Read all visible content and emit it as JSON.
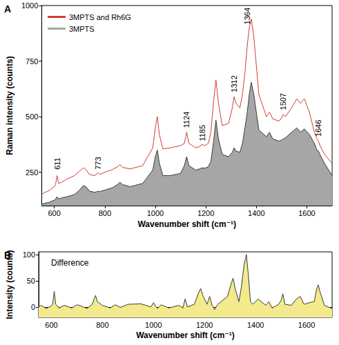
{
  "chart_data": [
    {
      "type": "line",
      "panel": "A",
      "x_label": "Wavenumber shift (cm⁻¹)",
      "y_label": "Raman intensity (counts)",
      "x": [
        550,
        560,
        580,
        600,
        605,
        611,
        617,
        630,
        650,
        680,
        700,
        715,
        725,
        740,
        760,
        767,
        773,
        780,
        800,
        830,
        850,
        860,
        870,
        900,
        950,
        990,
        1000,
        1008,
        1016,
        1030,
        1060,
        1100,
        1115,
        1124,
        1133,
        1160,
        1175,
        1185,
        1195,
        1210,
        1220,
        1230,
        1240,
        1250,
        1265,
        1290,
        1305,
        1312,
        1320,
        1335,
        1345,
        1355,
        1364,
        1372,
        1380,
        1390,
        1410,
        1440,
        1452,
        1465,
        1490,
        1500,
        1507,
        1515,
        1540,
        1560,
        1575,
        1590,
        1610,
        1630,
        1640,
        1646,
        1652,
        1670,
        1700
      ],
      "series": [
        {
          "name": "3MPTS and Rh6G",
          "color": "#d43a34",
          "type": "line",
          "values": [
            150,
            158,
            168,
            185,
            195,
            235,
            200,
            205,
            220,
            235,
            255,
            270,
            262,
            240,
            235,
            240,
            248,
            240,
            250,
            262,
            275,
            285,
            272,
            265,
            280,
            360,
            450,
            500,
            420,
            355,
            360,
            370,
            380,
            430,
            380,
            360,
            365,
            375,
            370,
            380,
            430,
            560,
            665,
            560,
            460,
            470,
            540,
            590,
            560,
            540,
            600,
            700,
            820,
            900,
            940,
            860,
            600,
            500,
            520,
            490,
            480,
            495,
            510,
            500,
            540,
            580,
            560,
            580,
            520,
            430,
            400,
            390,
            370,
            330,
            290
          ]
        },
        {
          "name": "3MPTS",
          "color": "#a6a6a6",
          "type": "area",
          "values": [
            105,
            110,
            115,
            125,
            128,
            140,
            130,
            135,
            140,
            150,
            170,
            190,
            185,
            165,
            160,
            162,
            165,
            163,
            170,
            180,
            195,
            205,
            195,
            185,
            200,
            260,
            320,
            350,
            290,
            235,
            235,
            245,
            280,
            320,
            280,
            260,
            265,
            270,
            268,
            275,
            300,
            380,
            485,
            400,
            330,
            320,
            340,
            360,
            345,
            340,
            380,
            450,
            520,
            600,
            655,
            600,
            440,
            410,
            430,
            400,
            390,
            395,
            400,
            405,
            430,
            450,
            430,
            445,
            420,
            380,
            350,
            345,
            330,
            290,
            235
          ]
        }
      ],
      "xlim": [
        550,
        1700
      ],
      "xticks": [
        600,
        800,
        1000,
        1200,
        1400,
        1600
      ],
      "ylim": [
        100,
        1000
      ],
      "yticks": [
        250,
        500,
        750,
        1000
      ],
      "grid": false,
      "legend": "upper left",
      "annotations": [
        {
          "text": "611",
          "x": 611,
          "y": 262
        },
        {
          "text": "773",
          "x": 773,
          "y": 262
        },
        {
          "text": "1124",
          "x": 1124,
          "y": 450
        },
        {
          "text": "1185",
          "x": 1185,
          "y": 390
        },
        {
          "text": "1312",
          "x": 1312,
          "y": 610
        },
        {
          "text": "1364",
          "x": 1364,
          "y": 915
        },
        {
          "text": "1507",
          "x": 1507,
          "y": 530
        },
        {
          "text": "1646",
          "x": 1646,
          "y": 410
        }
      ]
    },
    {
      "type": "line",
      "panel": "B",
      "x_label": "Wavenumber shift (cm⁻¹)",
      "y_label": "Intensity (counts)",
      "x": [
        550,
        560,
        580,
        600,
        605,
        611,
        617,
        630,
        650,
        680,
        700,
        715,
        725,
        740,
        760,
        767,
        773,
        780,
        800,
        830,
        850,
        860,
        870,
        900,
        950,
        990,
        1000,
        1008,
        1016,
        1030,
        1060,
        1100,
        1115,
        1124,
        1133,
        1160,
        1175,
        1185,
        1195,
        1210,
        1220,
        1230,
        1240,
        1250,
        1265,
        1290,
        1305,
        1312,
        1320,
        1335,
        1345,
        1355,
        1364,
        1372,
        1380,
        1390,
        1410,
        1440,
        1452,
        1465,
        1490,
        1500,
        1507,
        1515,
        1540,
        1560,
        1575,
        1590,
        1610,
        1630,
        1640,
        1646,
        1652,
        1670,
        1700
      ],
      "series": [
        {
          "name": "Difference",
          "color": "#f2ea8c",
          "type": "area",
          "values": [
            0,
            3,
            -3,
            2,
            5,
            30,
            5,
            -2,
            3,
            -2,
            4,
            2,
            0,
            -3,
            5,
            15,
            22,
            10,
            3,
            -2,
            4,
            2,
            -1,
            5,
            6,
            0,
            8,
            2,
            -3,
            4,
            -2,
            3,
            -2,
            15,
            0,
            5,
            25,
            35,
            20,
            5,
            20,
            3,
            -5,
            4,
            10,
            20,
            45,
            55,
            35,
            10,
            40,
            80,
            100,
            60,
            10,
            5,
            15,
            3,
            10,
            -2,
            5,
            12,
            25,
            5,
            3,
            15,
            20,
            5,
            8,
            10,
            35,
            42,
            30,
            3,
            -3
          ]
        }
      ],
      "xlim": [
        550,
        1700
      ],
      "xticks": [
        600,
        800,
        1000,
        1200,
        1400,
        1600
      ],
      "ylim": [
        -20,
        105
      ],
      "yticks": [
        0,
        50,
        100
      ],
      "grid": false
    }
  ]
}
